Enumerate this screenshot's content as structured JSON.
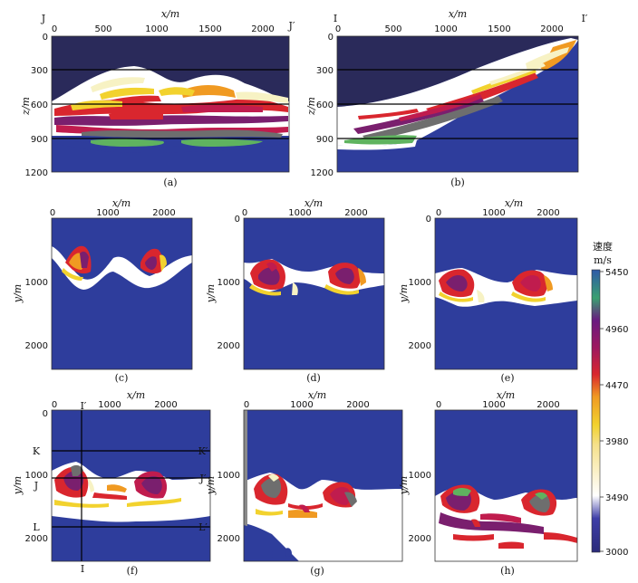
{
  "panels": {
    "a": {
      "caption": "(a)",
      "xlabel": "x/m",
      "ylabel": "z/m",
      "xticks": [
        "0",
        "500",
        "1000",
        "1500",
        "2000"
      ],
      "yticks": [
        "0",
        "300",
        "600",
        "900",
        "1200"
      ],
      "corner_left": "J",
      "corner_right": "J′"
    },
    "b": {
      "caption": "(b)",
      "xlabel": "x/m",
      "ylabel": "z/m",
      "xticks": [
        "0",
        "500",
        "1000",
        "1500",
        "2000"
      ],
      "yticks": [
        "0",
        "300",
        "600",
        "900",
        "1200"
      ],
      "corner_left": "I",
      "corner_right": "I′"
    },
    "c": {
      "caption": "(c)",
      "xlabel": "x/m",
      "ylabel": "y/m",
      "xticks": [
        "0",
        "1000",
        "2000"
      ],
      "yticks": [
        "1000",
        "2000"
      ]
    },
    "d": {
      "caption": "(d)",
      "xlabel": "x/m",
      "ylabel": "y/m",
      "xticks": [
        "0",
        "1000",
        "2000"
      ],
      "yticks": [
        "0",
        "1000",
        "2000"
      ]
    },
    "e": {
      "caption": "(e)",
      "xlabel": "x/m",
      "ylabel": "y/m",
      "xticks": [
        "0",
        "1000",
        "2000"
      ],
      "yticks": [
        "0",
        "1000",
        "2000"
      ]
    },
    "f": {
      "caption": "(f)",
      "xlabel": "x/m",
      "ylabel": "y/m",
      "xticks": [
        "0",
        "1000",
        "2000"
      ],
      "yticks": [
        "0",
        "1000",
        "2000"
      ],
      "line_labels": {
        "i_top": "I′",
        "i_bottom": "I",
        "k_left": "K",
        "k_right": "K′",
        "j_left": "J",
        "j_right": "J′",
        "l_left": "L",
        "l_right": "L′"
      }
    },
    "g": {
      "caption": "(g)",
      "xlabel": "x/m",
      "ylabel": "y/m",
      "xticks": [
        "0",
        "1000",
        "2000"
      ],
      "yticks": [
        "1000",
        "2000"
      ]
    },
    "h": {
      "caption": "(h)",
      "xlabel": "x/m",
      "ylabel": "y/m",
      "xticks": [
        "0",
        "1000",
        "2000"
      ],
      "yticks": [
        "1000",
        "2000"
      ]
    }
  },
  "colorbar": {
    "title_line1": "速度",
    "title_line2": "m/s",
    "ticks": [
      "5450",
      "4960",
      "4470",
      "3980",
      "3490",
      "3000"
    ]
  },
  "colors": {
    "navy": "#2a2a5a",
    "blue": "#2e3d9c",
    "white": "#ffffff",
    "cream": "#f7f2c4",
    "yellow": "#f2d22e",
    "orange": "#f09a22",
    "red": "#d9262e",
    "crimson": "#c01c4e",
    "purple": "#7a1f6e",
    "gray": "#6e6e6e",
    "green": "#5fb35f"
  }
}
